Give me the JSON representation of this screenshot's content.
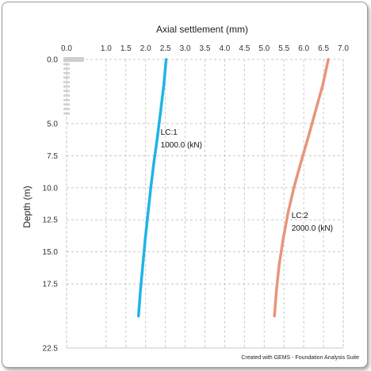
{
  "footer_text": "Created with GEMS - Foundation Analysis Suite",
  "colors": {
    "grid": "#c8c8c8",
    "axis_text": "#333333",
    "lc1": "#1eb4e6",
    "lc2": "#e8957a",
    "pile_marker": "#cfcfcf"
  },
  "chart_data": {
    "type": "line",
    "xlabel": "Axial settlement (mm)",
    "ylabel": "Depth (m)",
    "x_axis_position": "top",
    "y_inverted": true,
    "xlim": [
      0.0,
      7.0
    ],
    "ylim": [
      0.0,
      22.5
    ],
    "grid": true,
    "x_ticks": [
      0.0,
      1.0,
      1.5,
      2.0,
      2.5,
      3.0,
      3.5,
      4.0,
      4.5,
      5.0,
      5.5,
      6.0,
      6.5,
      7.0
    ],
    "x_tick_labels": [
      "0.0",
      "1.0",
      "1.5",
      "2.0",
      "2.5",
      "3.0",
      "3.5",
      "4.0",
      "4.5",
      "5.0",
      "5.5",
      "6.0",
      "6.5",
      "7.0"
    ],
    "y_ticks": [
      0.0,
      5.0,
      7.5,
      10.0,
      12.5,
      15.0,
      17.5,
      22.5
    ],
    "y_tick_labels": [
      "0.0",
      "5.0",
      "7.5",
      "10.0",
      "12.5",
      "15.0",
      "17.5",
      "22.5"
    ],
    "series": [
      {
        "name": "LC:1",
        "label_lines": [
          "LC:1",
          "1000.0 (kN)"
        ],
        "depth": [
          0,
          2,
          4,
          6,
          8,
          10,
          12,
          14,
          16,
          18,
          20
        ],
        "settlement": [
          2.52,
          2.46,
          2.38,
          2.3,
          2.21,
          2.13,
          2.06,
          1.99,
          1.93,
          1.87,
          1.82
        ]
      },
      {
        "name": "LC:2",
        "label_lines": [
          "LC:2",
          "2000.0 (kN)"
        ],
        "depth": [
          0,
          2,
          4,
          6,
          8,
          10,
          12,
          14,
          16,
          18,
          20
        ],
        "settlement": [
          6.62,
          6.48,
          6.3,
          6.12,
          5.93,
          5.75,
          5.6,
          5.48,
          5.38,
          5.31,
          5.26
        ]
      }
    ],
    "pile_marker_depth": [
      0.0,
      4.5
    ]
  }
}
